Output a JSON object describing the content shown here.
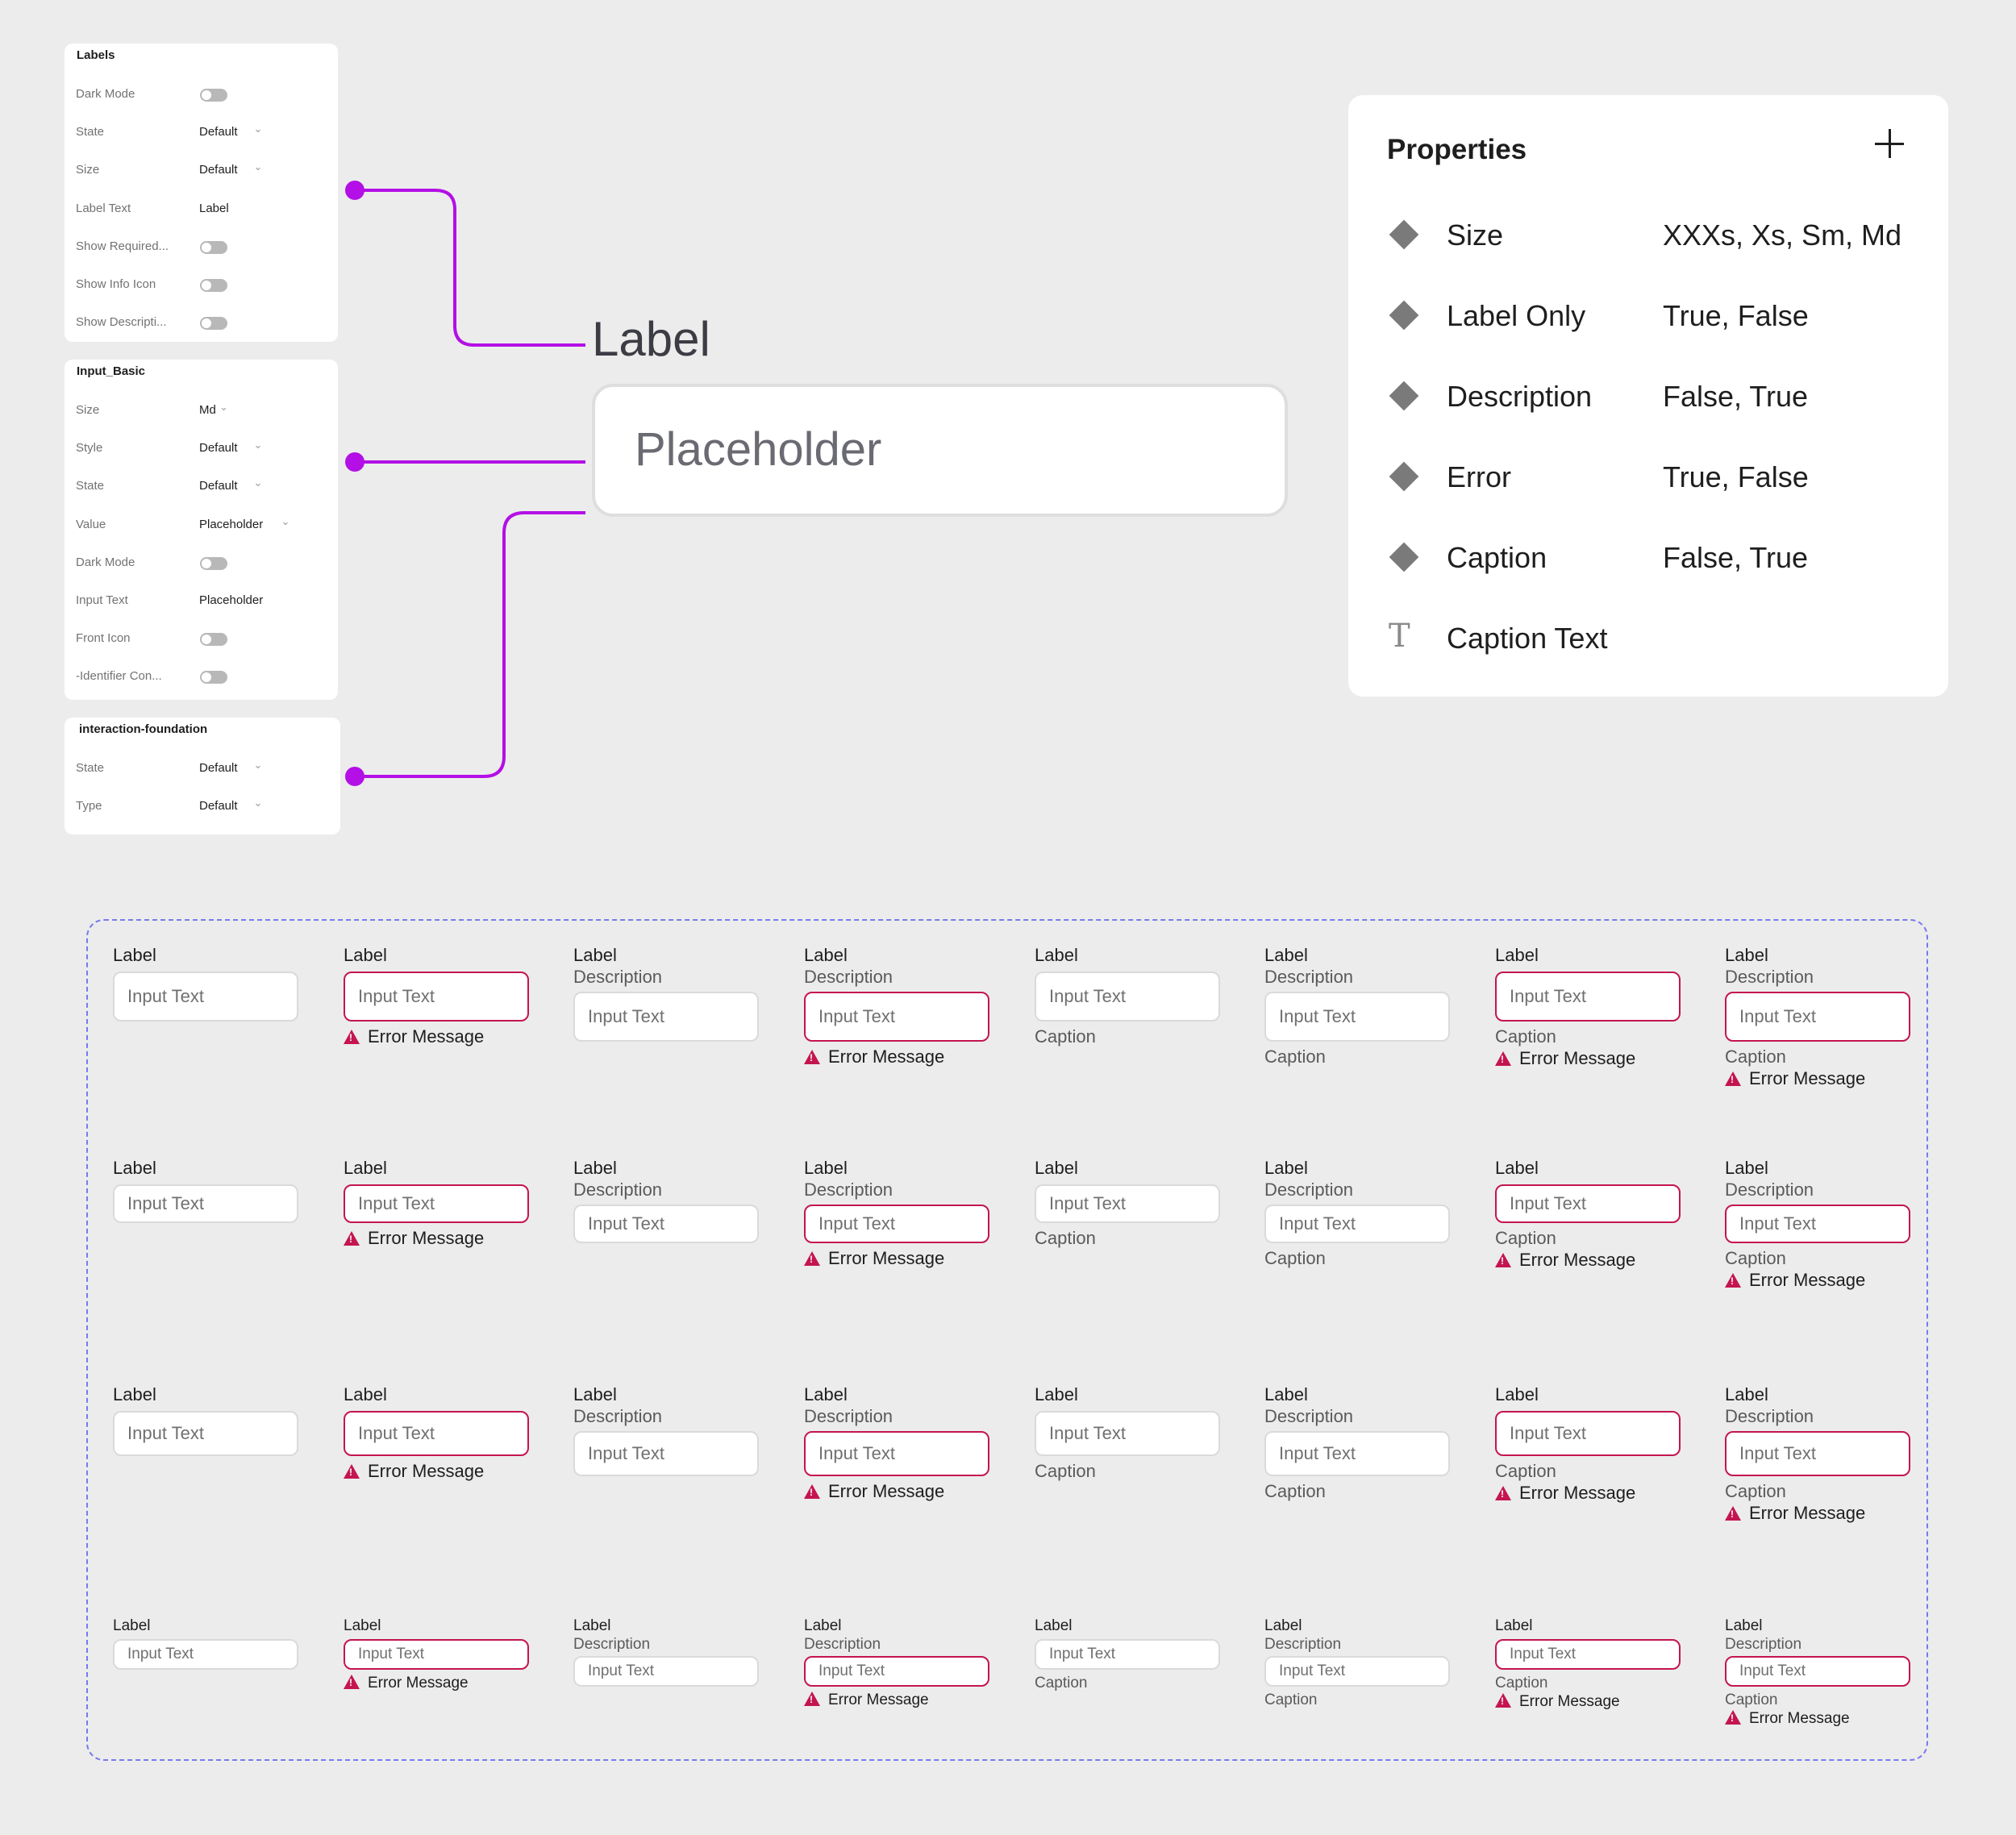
{
  "panels": {
    "labels": {
      "title": "Labels",
      "rows": [
        {
          "label": "Dark Mode",
          "kind": "toggle"
        },
        {
          "label": "State",
          "value": "Default",
          "kind": "select"
        },
        {
          "label": "Size",
          "value": "Default",
          "kind": "select"
        },
        {
          "label": "Label Text",
          "value": "Label",
          "kind": "text"
        },
        {
          "label": "Show Required...",
          "kind": "toggle"
        },
        {
          "label": "Show Info Icon",
          "kind": "toggle"
        },
        {
          "label": "Show Descripti...",
          "kind": "toggle"
        }
      ]
    },
    "input_basic": {
      "title": "Input_Basic",
      "rows": [
        {
          "label": "Size",
          "value": "Md",
          "kind": "select"
        },
        {
          "label": "Style",
          "value": "Default",
          "kind": "select"
        },
        {
          "label": "State",
          "value": "Default",
          "kind": "select"
        },
        {
          "label": "Value",
          "value": "Placeholder",
          "kind": "select"
        },
        {
          "label": "Dark Mode",
          "kind": "toggle"
        },
        {
          "label": "Input Text",
          "value": "Placeholder",
          "kind": "text"
        },
        {
          "label": "Front Icon",
          "kind": "toggle"
        },
        {
          "label": "-Identifier Con...",
          "kind": "toggle"
        }
      ]
    },
    "interaction": {
      "title": "interaction-foundation",
      "rows": [
        {
          "label": "State",
          "value": "Default",
          "kind": "select"
        },
        {
          "label": "Type",
          "value": "Default",
          "kind": "select"
        }
      ]
    }
  },
  "preview": {
    "label": "Label",
    "placeholder": "Placeholder"
  },
  "properties": {
    "title": "Properties",
    "rows": [
      {
        "icon": "variant-diamond-icon",
        "name": "Size",
        "values": "XXXs, Xs, Sm, Md"
      },
      {
        "icon": "variant-diamond-icon",
        "name": "Label Only",
        "values": "True, False"
      },
      {
        "icon": "variant-diamond-icon",
        "name": "Description",
        "values": "False, True"
      },
      {
        "icon": "variant-diamond-icon",
        "name": "Error",
        "values": "True, False"
      },
      {
        "icon": "variant-diamond-icon",
        "name": "Caption",
        "values": "False, True"
      },
      {
        "icon": "text-property-icon",
        "name": "Caption Text",
        "values": ""
      }
    ]
  },
  "variants": {
    "label": "Label",
    "description": "Description",
    "input_text": "Input Text",
    "caption": "Caption",
    "error": "Error Message"
  },
  "colors": {
    "connector": "#b30fe6",
    "error": "#c4154f",
    "dashed_border": "#7a79ef"
  }
}
